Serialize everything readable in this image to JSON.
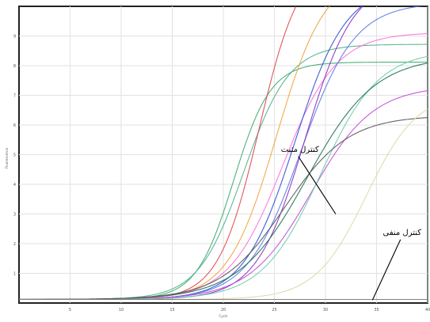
{
  "chart_data": {
    "type": "line",
    "title": "",
    "xlabel": "Cycle",
    "ylabel": "Fluorescence",
    "xlim": [
      0,
      40
    ],
    "ylim": [
      0,
      10
    ],
    "x_ticks": [
      5,
      10,
      15,
      20,
      25,
      30,
      35,
      40
    ],
    "y_ticks": [
      1,
      2,
      3,
      4,
      5,
      6,
      7,
      8,
      9
    ],
    "grid": true,
    "legend": "none",
    "baseline": 0.12,
    "series": [
      {
        "color": "#3aa86b",
        "ct": 21.0,
        "plateau": 8.0,
        "k": 0.55
      },
      {
        "color": "#4fb08a",
        "ct": 22.0,
        "plateau": 8.6,
        "k": 0.45
      },
      {
        "color": "#e0444a",
        "ct": 23.5,
        "plateau": 11.5,
        "k": 0.5
      },
      {
        "color": "#f2a23a",
        "ct": 25.2,
        "plateau": 11.0,
        "k": 0.42
      },
      {
        "color": "#ff6fd8",
        "ct": 25.8,
        "plateau": 9.0,
        "k": 0.38
      },
      {
        "color": "#2a4fd6",
        "ct": 27.0,
        "plateau": 10.6,
        "k": 0.4
      },
      {
        "color": "#5a7ae0",
        "ct": 27.6,
        "plateau": 10.0,
        "k": 0.38
      },
      {
        "color": "#8a2fbf",
        "ct": 28.0,
        "plateau": 10.8,
        "k": 0.42
      },
      {
        "color": "#c04ad8",
        "ct": 28.6,
        "plateau": 7.2,
        "k": 0.33
      },
      {
        "color": "#6bcca6",
        "ct": 29.5,
        "plateau": 8.4,
        "k": 0.35
      },
      {
        "color": "#1e6e54",
        "ct": 28.2,
        "plateau": 8.2,
        "k": 0.3
      },
      {
        "color": "#555555",
        "ct": 26.0,
        "plateau": 6.2,
        "k": 0.32
      },
      {
        "color": "#d8d8a8",
        "ct": 34.0,
        "plateau": 7.0,
        "k": 0.4
      },
      {
        "color": "#777777",
        "ct": 60.0,
        "plateau": 0.5,
        "k": 0.5
      }
    ],
    "annotations": [
      {
        "text": "کنترل مثبت",
        "x": 27.5,
        "y": 5.1,
        "arrow_to": [
          31.0,
          3.0
        ]
      },
      {
        "text": "کنترل منفی",
        "x": 37.5,
        "y": 2.3,
        "arrow_to": [
          34.6,
          0.1
        ]
      }
    ]
  }
}
